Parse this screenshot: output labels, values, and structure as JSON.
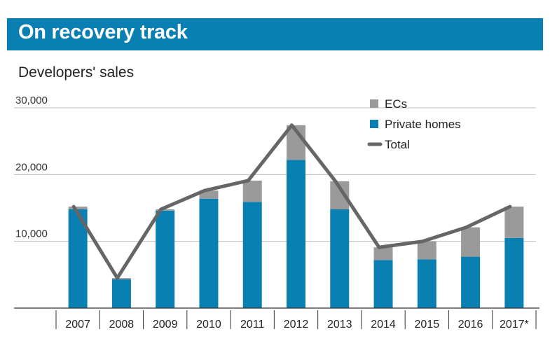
{
  "header": {
    "title": "On recovery track"
  },
  "chart_data": {
    "type": "bar",
    "title": "On recovery track",
    "subtitle": "Developers' sales",
    "xlabel": "",
    "ylabel": "",
    "stacked": true,
    "categories": [
      "2007",
      "2008",
      "2009",
      "2010",
      "2011",
      "2012",
      "2013",
      "2014",
      "2015",
      "2016",
      "2017*"
    ],
    "y_ticks": [
      10000,
      20000,
      30000
    ],
    "y_tick_labels": [
      "10,000",
      "20,000",
      "30,000"
    ],
    "ylim": [
      0,
      32000
    ],
    "grid": true,
    "legend_position": "top-right",
    "series": [
      {
        "name": "Private homes",
        "type": "bar",
        "color": "#0a7fb2",
        "values": [
          14800,
          4300,
          14600,
          16400,
          15900,
          22200,
          14800,
          7200,
          7300,
          7700,
          10500
        ]
      },
      {
        "name": "ECs",
        "type": "bar",
        "color": "#9a9a9a",
        "values": [
          400,
          200,
          200,
          1200,
          3200,
          5200,
          4200,
          1900,
          2700,
          4400,
          4700
        ]
      },
      {
        "name": "Total",
        "type": "line",
        "color": "#666666",
        "values": [
          15200,
          4500,
          14800,
          17600,
          19100,
          27400,
          19000,
          9100,
          10000,
          12100,
          15200
        ]
      }
    ]
  }
}
